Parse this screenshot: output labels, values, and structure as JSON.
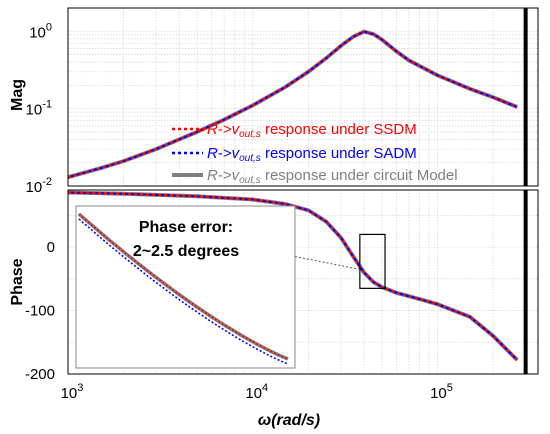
{
  "chart_data": [
    {
      "type": "line",
      "panel": "magnitude",
      "ylabel": "Mag",
      "yscale": "log",
      "xscale": "log",
      "xlim": [
        1000,
        350000
      ],
      "ylim": [
        0.01,
        2
      ],
      "yticks": [
        {
          "value": 0.01,
          "base": "10",
          "exp": "-2"
        },
        {
          "value": 0.1,
          "base": "10",
          "exp": "-1"
        },
        {
          "value": 1,
          "base": "10",
          "exp": "0"
        }
      ],
      "grid": true,
      "x": [
        1000,
        1500,
        2000,
        3000,
        5000,
        7000,
        10000,
        15000,
        20000,
        25000,
        30000,
        35000,
        40000,
        45000,
        50000,
        60000,
        70000,
        100000,
        150000,
        200000,
        270000
      ],
      "series": [
        {
          "name_parts": {
            "R": "R",
            "arrow": "->",
            "v": "v",
            "sub": "out,s",
            "rest": " response under SSDM"
          },
          "color": "#ff0000",
          "style": "dotted",
          "values": [
            0.013,
            0.017,
            0.021,
            0.03,
            0.05,
            0.072,
            0.11,
            0.19,
            0.3,
            0.45,
            0.65,
            0.85,
            0.99,
            0.92,
            0.78,
            0.55,
            0.42,
            0.27,
            0.18,
            0.14,
            0.105
          ]
        },
        {
          "name_parts": {
            "R": "R",
            "arrow": "->",
            "v": "v",
            "sub": "out,s",
            "rest": " response under SADM"
          },
          "color": "#0000ff",
          "style": "dotted",
          "values": [
            0.013,
            0.017,
            0.021,
            0.03,
            0.05,
            0.072,
            0.11,
            0.19,
            0.3,
            0.45,
            0.65,
            0.85,
            0.99,
            0.92,
            0.78,
            0.55,
            0.42,
            0.27,
            0.18,
            0.14,
            0.105
          ]
        },
        {
          "name_parts": {
            "R": "R",
            "arrow": "->",
            "v": "v",
            "sub": "out,s",
            "rest": " response under circuit Model"
          },
          "color": "#808080",
          "style": "solid",
          "values": [
            0.013,
            0.017,
            0.021,
            0.03,
            0.05,
            0.072,
            0.11,
            0.19,
            0.3,
            0.45,
            0.65,
            0.85,
            0.99,
            0.92,
            0.78,
            0.55,
            0.42,
            0.27,
            0.18,
            0.14,
            0.105
          ]
        }
      ],
      "vline_x": 300000,
      "legend": "bottom-right"
    },
    {
      "type": "line",
      "panel": "phase",
      "ylabel": "Phase",
      "xlabel": "ω(rad/s)",
      "xscale": "log",
      "xlim": [
        1000,
        350000
      ],
      "ylim": [
        -200,
        90
      ],
      "yticks": [
        0,
        -100,
        -200
      ],
      "xticks": [
        {
          "value": 1000,
          "base": "10",
          "exp": "3"
        },
        {
          "value": 10000,
          "base": "10",
          "exp": "4"
        },
        {
          "value": 100000,
          "base": "10",
          "exp": "5"
        }
      ],
      "grid": true,
      "x": [
        1000,
        2000,
        5000,
        10000,
        15000,
        20000,
        25000,
        30000,
        35000,
        40000,
        45000,
        50000,
        60000,
        80000,
        100000,
        150000,
        200000,
        270000
      ],
      "series": [
        {
          "color": "#ff0000",
          "style": "dotted",
          "values": [
            86,
            84,
            80,
            75,
            68,
            58,
            40,
            15,
            -15,
            -40,
            -55,
            -63,
            -72,
            -82,
            -90,
            -110,
            -140,
            -178
          ]
        },
        {
          "color": "#0000ff",
          "style": "dotted",
          "values": [
            86,
            84,
            80,
            75,
            68,
            58,
            40,
            15,
            -15,
            -40,
            -55,
            -63,
            -72,
            -82,
            -90,
            -110,
            -140,
            -178
          ]
        },
        {
          "color": "#808080",
          "style": "solid",
          "values": [
            86,
            84,
            80,
            75,
            68,
            58,
            40,
            15,
            -15,
            -40,
            -55,
            -63,
            -72,
            -82,
            -90,
            -110,
            -140,
            -178
          ]
        }
      ],
      "vline_x": 300000,
      "annotations": [
        "Phase error:",
        "2~2.5 degrees"
      ],
      "zoom_box": {
        "x": [
          38000,
          52000
        ],
        "y": [
          -65,
          20
        ]
      }
    }
  ]
}
